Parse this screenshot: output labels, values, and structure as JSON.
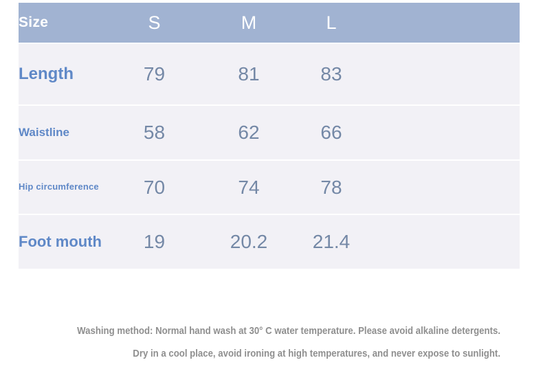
{
  "table": {
    "header": {
      "label": "Size",
      "columns": [
        "S",
        "M",
        "L"
      ]
    },
    "rows": [
      {
        "label": "Length",
        "values": [
          "79",
          "81",
          "83"
        ]
      },
      {
        "label": "Waistline",
        "values": [
          "58",
          "62",
          "66"
        ]
      },
      {
        "label": "Hip circumference",
        "values": [
          "70",
          "74",
          "78"
        ]
      },
      {
        "label": "Foot mouth",
        "values": [
          "19",
          "20.2",
          "21.4"
        ]
      }
    ]
  },
  "care_instructions": {
    "line1": "Washing method: Normal hand wash at 30° C water temperature. Please avoid alkaline detergents.",
    "line2": "Dry in a cool place, avoid ironing at high temperatures, and never expose to sunlight."
  },
  "colors": {
    "header_background": "#A1B3D2",
    "header_text": "#FFFFFF",
    "row_background": "#F2F1F6",
    "label_text": "#5F88C7",
    "value_text": "#7488A6",
    "care_text": "#8F8F8F"
  }
}
